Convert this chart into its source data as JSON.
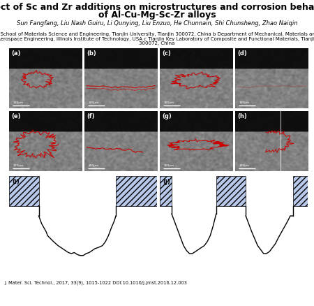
{
  "title_line1": "Effect of Sc and Zr additions on microstructures and corrosion behavior",
  "title_line2": "of Al-Cu-Mg-Sc-Zr alloys",
  "authors": "Sun Fangfang, Liu Nash Guiru, Li Qunying, Liu Enzuo, He Chunnain, Shi Chunsheng, Zhao Naiqin",
  "affil1": "a School of Materials Science and Engineering, Tianjin University, Tianjin 300072, China b Department of Mechanical, Materials and",
  "affil2": "Aerospace Engineering, Illinois Institute of Technology, USA c Tianjin Key Laboratory of Composite and Functional Materials, Tianjin",
  "affil3": "300072, China",
  "journal": "J. Mater. Sci. Technol., 2017, 33(9), 1015-1022 DOI:10.1016/j.jmst.2016.12.003",
  "panel_labels": [
    "(a)",
    "(b)",
    "(c)",
    "(d)",
    "(e)",
    "(f)",
    "(g)",
    "(h)",
    "(i)",
    "(j)"
  ],
  "scale_bar": "100μm",
  "bg_color": "#ffffff",
  "title_fontsize": 9.0,
  "authors_fontsize": 6.0,
  "affil_fontsize": 5.0,
  "journal_fontsize": 4.8,
  "label_fontsize": 6.0,
  "hatch_pattern": "////",
  "hatch_facecolor": "#b8c8e8"
}
